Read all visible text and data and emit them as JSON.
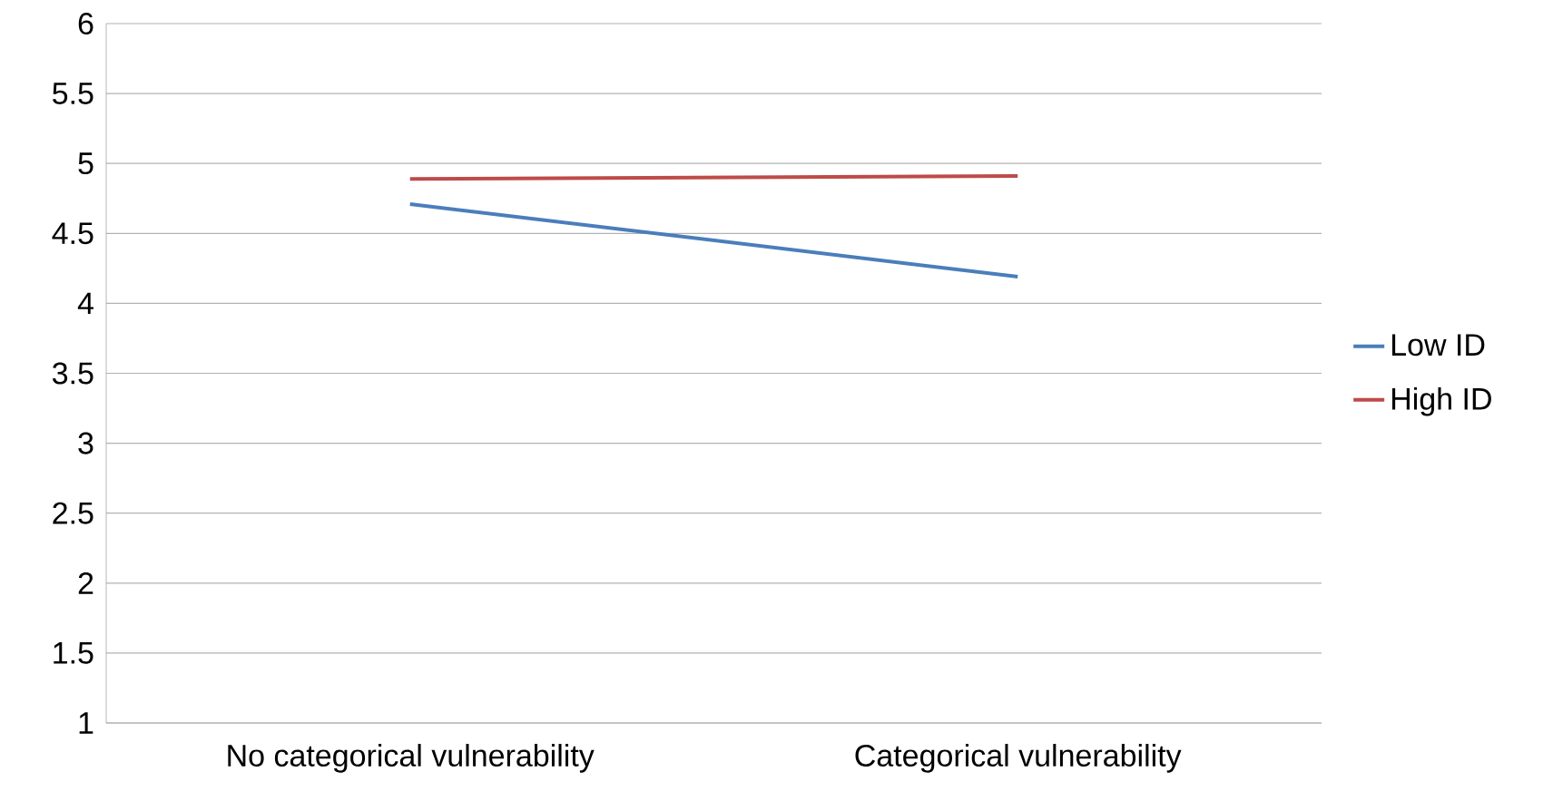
{
  "chart_data": {
    "type": "line",
    "categories": [
      "No categorical vulnerability",
      "Categorical vulnerability"
    ],
    "series": [
      {
        "name": "Low ID",
        "color": "#4a7ebb",
        "values": [
          4.71,
          4.19
        ]
      },
      {
        "name": "High ID",
        "color": "#be4b48",
        "values": [
          4.89,
          4.91
        ]
      }
    ],
    "ylim": [
      1,
      6
    ],
    "yticks": [
      1,
      1.5,
      2,
      2.5,
      3,
      3.5,
      4,
      4.5,
      5,
      5.5,
      6
    ],
    "grid": "y",
    "legend": "right",
    "marker": "none",
    "line_style": "solid"
  }
}
